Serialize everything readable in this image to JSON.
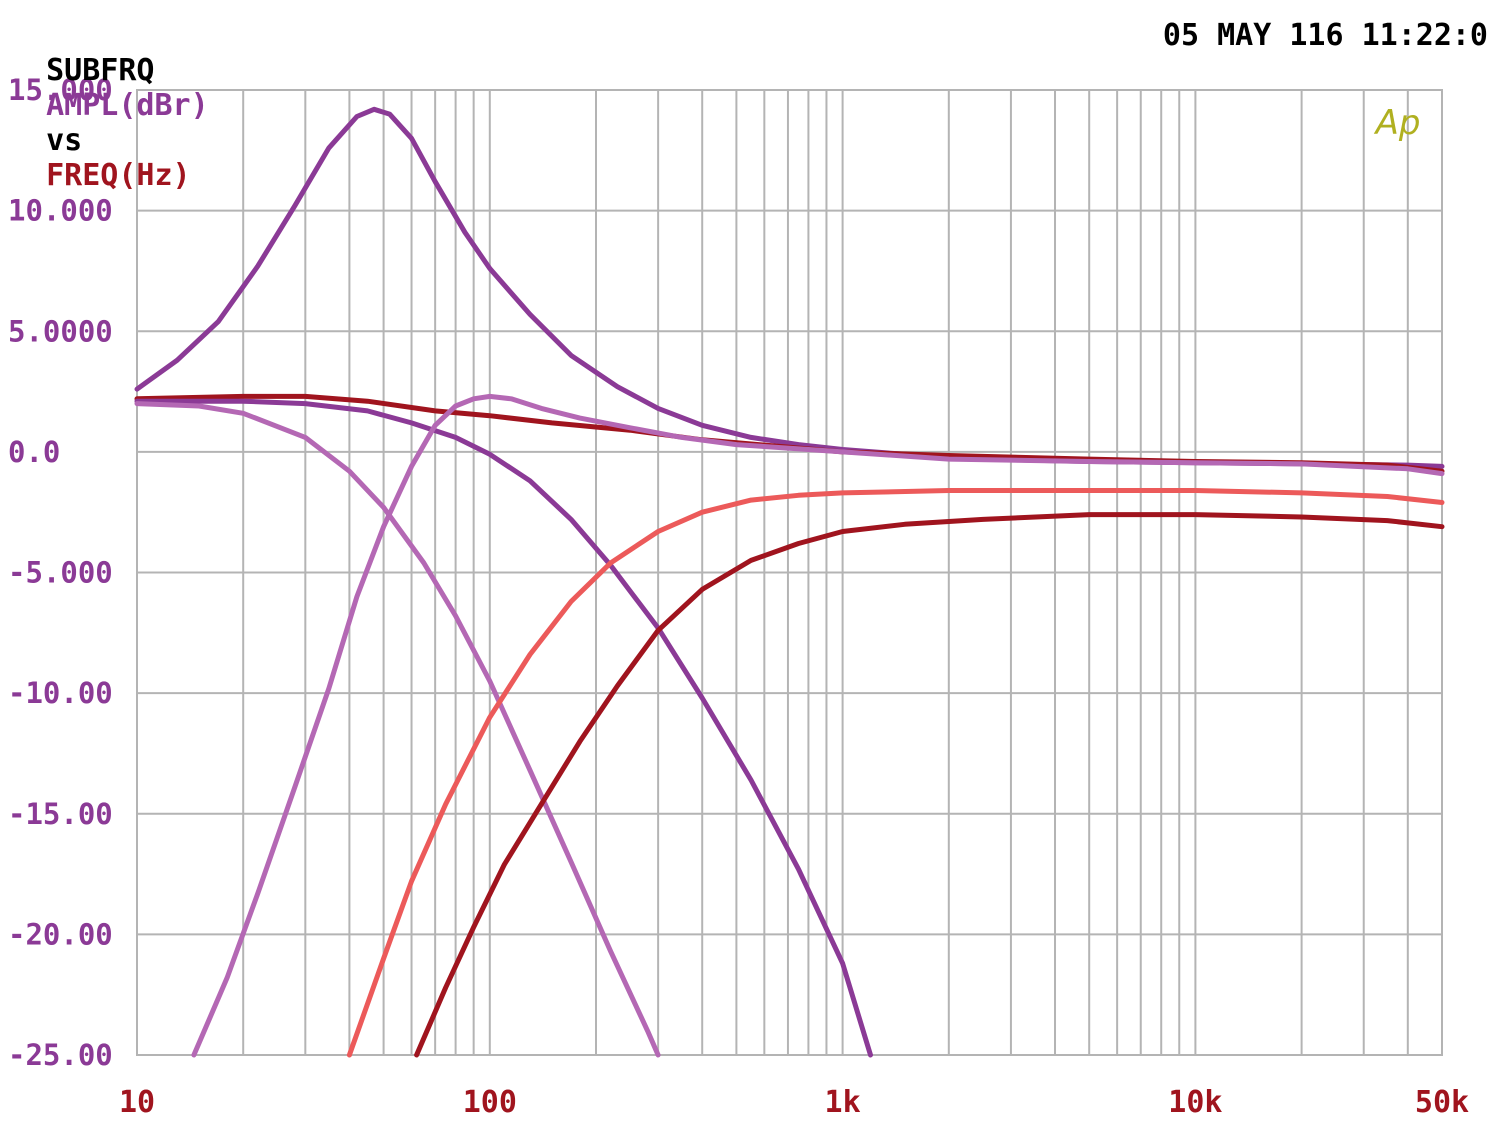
{
  "header": {
    "prefix": "SUBFRQ",
    "ylabel": "AMPL(dBr)",
    "vs": "vs",
    "xlabel": "FREQ(Hz)",
    "timestamp": "05 MAY 116 11:22:0"
  },
  "logo": "Ap",
  "colors": {
    "ylabel": "#8B3A96",
    "xlabel": "#A0141E",
    "grid": "#b4b4b4",
    "logo": "#b0b020",
    "text": "#000000"
  },
  "chart_data": {
    "type": "line",
    "title": "",
    "xlabel": "FREQ(Hz)",
    "ylabel": "AMPL(dBr)",
    "xscale": "log",
    "xlim": [
      10,
      50000
    ],
    "ylim": [
      -25,
      15
    ],
    "grid": true,
    "yticks": [
      {
        "value": 15,
        "label": "15.000"
      },
      {
        "value": 10,
        "label": "10.000"
      },
      {
        "value": 5,
        "label": "5.0000"
      },
      {
        "value": 0,
        "label": "0.0"
      },
      {
        "value": -5,
        "label": "-5.000"
      },
      {
        "value": -10,
        "label": "-10.00"
      },
      {
        "value": -15,
        "label": "-15.00"
      },
      {
        "value": -20,
        "label": "-20.00"
      },
      {
        "value": -25,
        "label": "-25.00"
      }
    ],
    "xticks": [
      {
        "value": 10,
        "label": "10"
      },
      {
        "value": 100,
        "label": "100"
      },
      {
        "value": 1000,
        "label": "1k"
      },
      {
        "value": 10000,
        "label": "10k"
      },
      {
        "value": 50000,
        "label": "50k"
      }
    ],
    "series": [
      {
        "color": "#8B3A96",
        "points": [
          [
            10,
            2.6
          ],
          [
            13,
            3.8
          ],
          [
            17,
            5.4
          ],
          [
            22,
            7.7
          ],
          [
            28,
            10.2
          ],
          [
            35,
            12.6
          ],
          [
            42,
            13.9
          ],
          [
            47,
            14.2
          ],
          [
            52,
            14.0
          ],
          [
            60,
            13.0
          ],
          [
            70,
            11.2
          ],
          [
            85,
            9.1
          ],
          [
            100,
            7.6
          ],
          [
            130,
            5.7
          ],
          [
            170,
            4.0
          ],
          [
            230,
            2.7
          ],
          [
            300,
            1.8
          ],
          [
            400,
            1.1
          ],
          [
            550,
            0.6
          ],
          [
            750,
            0.3
          ],
          [
            1000,
            0.1
          ],
          [
            1500,
            -0.1
          ],
          [
            2500,
            -0.3
          ],
          [
            5000,
            -0.4
          ],
          [
            10000,
            -0.45
          ],
          [
            20000,
            -0.5
          ],
          [
            40000,
            -0.55
          ],
          [
            50000,
            -0.6
          ]
        ]
      },
      {
        "color": "#A0141E",
        "points": [
          [
            10,
            2.2
          ],
          [
            20,
            2.3
          ],
          [
            30,
            2.3
          ],
          [
            45,
            2.1
          ],
          [
            70,
            1.7
          ],
          [
            100,
            1.5
          ],
          [
            150,
            1.2
          ],
          [
            250,
            0.9
          ],
          [
            400,
            0.5
          ],
          [
            700,
            0.2
          ],
          [
            1000,
            0.0
          ],
          [
            2000,
            -0.15
          ],
          [
            5000,
            -0.3
          ],
          [
            10000,
            -0.4
          ],
          [
            20000,
            -0.45
          ],
          [
            35000,
            -0.55
          ],
          [
            50000,
            -0.8
          ]
        ]
      },
      {
        "color": "#8B3A96",
        "points": [
          [
            10,
            2.1
          ],
          [
            20,
            2.1
          ],
          [
            30,
            2.0
          ],
          [
            45,
            1.7
          ],
          [
            60,
            1.2
          ],
          [
            80,
            0.6
          ],
          [
            100,
            -0.1
          ],
          [
            130,
            -1.2
          ],
          [
            170,
            -2.8
          ],
          [
            220,
            -4.7
          ],
          [
            300,
            -7.3
          ],
          [
            400,
            -10.2
          ],
          [
            550,
            -13.6
          ],
          [
            750,
            -17.3
          ],
          [
            1000,
            -21.2
          ],
          [
            1200,
            -25
          ]
        ]
      },
      {
        "color": "#B468B4",
        "points": [
          [
            10,
            2.0
          ],
          [
            15,
            1.9
          ],
          [
            20,
            1.6
          ],
          [
            30,
            0.6
          ],
          [
            40,
            -0.8
          ],
          [
            50,
            -2.3
          ],
          [
            65,
            -4.6
          ],
          [
            80,
            -6.8
          ],
          [
            100,
            -9.5
          ],
          [
            130,
            -13.2
          ],
          [
            170,
            -17.0
          ],
          [
            220,
            -20.7
          ],
          [
            280,
            -24.0
          ],
          [
            300,
            -25
          ]
        ]
      },
      {
        "color": "#B468B4",
        "points": [
          [
            14.5,
            -25
          ],
          [
            18,
            -21.8
          ],
          [
            22,
            -18.3
          ],
          [
            28,
            -13.9
          ],
          [
            35,
            -9.8
          ],
          [
            42,
            -6.0
          ],
          [
            50,
            -3.1
          ],
          [
            60,
            -0.6
          ],
          [
            70,
            1.1
          ],
          [
            80,
            1.9
          ],
          [
            90,
            2.2
          ],
          [
            100,
            2.3
          ],
          [
            115,
            2.2
          ],
          [
            140,
            1.8
          ],
          [
            180,
            1.4
          ],
          [
            250,
            1.0
          ],
          [
            350,
            0.6
          ],
          [
            500,
            0.3
          ],
          [
            800,
            0.1
          ],
          [
            1000,
            0.0
          ],
          [
            2000,
            -0.3
          ],
          [
            5000,
            -0.4
          ],
          [
            10000,
            -0.45
          ],
          [
            20000,
            -0.5
          ],
          [
            40000,
            -0.7
          ],
          [
            50000,
            -0.9
          ]
        ]
      },
      {
        "color": "#EC5A5A",
        "points": [
          [
            40,
            -25
          ],
          [
            50,
            -21.0
          ],
          [
            60,
            -17.8
          ],
          [
            75,
            -14.6
          ],
          [
            100,
            -11.0
          ],
          [
            130,
            -8.4
          ],
          [
            170,
            -6.2
          ],
          [
            220,
            -4.6
          ],
          [
            300,
            -3.3
          ],
          [
            400,
            -2.5
          ],
          [
            550,
            -2.0
          ],
          [
            750,
            -1.8
          ],
          [
            1000,
            -1.7
          ],
          [
            2000,
            -1.6
          ],
          [
            5000,
            -1.6
          ],
          [
            10000,
            -1.6
          ],
          [
            20000,
            -1.7
          ],
          [
            35000,
            -1.85
          ],
          [
            50000,
            -2.1
          ]
        ]
      },
      {
        "color": "#A0141E",
        "points": [
          [
            62,
            -25
          ],
          [
            75,
            -22.2
          ],
          [
            90,
            -19.7
          ],
          [
            110,
            -17.1
          ],
          [
            140,
            -14.6
          ],
          [
            180,
            -12.0
          ],
          [
            230,
            -9.7
          ],
          [
            300,
            -7.4
          ],
          [
            400,
            -5.7
          ],
          [
            550,
            -4.5
          ],
          [
            750,
            -3.8
          ],
          [
            1000,
            -3.3
          ],
          [
            1500,
            -3.0
          ],
          [
            2500,
            -2.8
          ],
          [
            5000,
            -2.6
          ],
          [
            10000,
            -2.6
          ],
          [
            20000,
            -2.7
          ],
          [
            35000,
            -2.85
          ],
          [
            50000,
            -3.1
          ]
        ]
      }
    ]
  }
}
